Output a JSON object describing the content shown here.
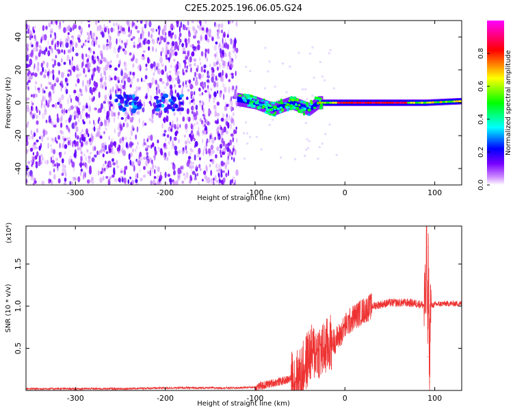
{
  "title": "C2E5.2025.196.06.05.G24",
  "chart_data": [
    {
      "type": "heatmap",
      "xlabel": "Height of straight line (km)",
      "ylabel": "Frequency (Hz)",
      "xlim": [
        -355,
        130
      ],
      "ylim": [
        -50,
        50
      ],
      "xticks": [
        -300,
        -200,
        -100,
        0,
        100
      ],
      "yticks": [
        -40,
        -20,
        0,
        20,
        40
      ],
      "colorbar": {
        "label": "Normalized spectral amplitude",
        "range": [
          0,
          1
        ],
        "ticks": [
          "0.0",
          "0.2",
          "0.4",
          "0.6",
          "0.8"
        ],
        "tick_values": [
          0,
          0.2,
          0.4,
          0.6,
          0.8
        ],
        "colors": [
          "#ffffff",
          "#cc88ff",
          "#7700ff",
          "#0000ff",
          "#00ffff",
          "#00ff00",
          "#ffff00",
          "#ff0000",
          "#ff00ff"
        ]
      },
      "noise_region_x": [
        -355,
        -120
      ],
      "signal_track": [
        {
          "x": -120,
          "f": 2
        },
        {
          "x": -100,
          "f": 0
        },
        {
          "x": -80,
          "f": -4
        },
        {
          "x": -60,
          "f": 0
        },
        {
          "x": -40,
          "f": -4
        },
        {
          "x": -30,
          "f": 0
        },
        {
          "x": 0,
          "f": 0
        },
        {
          "x": 50,
          "f": 0
        },
        {
          "x": 90,
          "f": 0
        },
        {
          "x": 130,
          "f": 1
        }
      ]
    },
    {
      "type": "line",
      "xlabel": "Height of straight line (km)",
      "ylabel": "SNR (10 * v/v)",
      "scale_note": "(x10⁴)",
      "xlim": [
        -355,
        130
      ],
      "ylim": [
        0,
        1.95
      ],
      "xticks": [
        -300,
        -200,
        -100,
        0,
        100
      ],
      "yticks": [
        "0.5",
        "1.0",
        "1.5"
      ],
      "ytick_values": [
        0.5,
        1.0,
        1.5
      ],
      "color": "#ee3333",
      "series": [
        {
          "x": [
            -355,
            -300,
            -250,
            -200,
            -150,
            -120,
            -100,
            -90,
            -80,
            -70,
            -60,
            -50,
            -45,
            -40,
            -35,
            -30,
            -25,
            -20,
            -15,
            -10,
            -5,
            0,
            10,
            20,
            30,
            40,
            50,
            60,
            70,
            80,
            85,
            90,
            91,
            92,
            93,
            94,
            95,
            100,
            110,
            120,
            130
          ],
          "y": [
            0.02,
            0.02,
            0.02,
            0.03,
            0.03,
            0.03,
            0.04,
            0.06,
            0.09,
            0.11,
            0.14,
            0.16,
            0.28,
            0.42,
            0.45,
            0.48,
            0.46,
            0.52,
            0.57,
            0.6,
            0.66,
            0.76,
            0.87,
            0.94,
            1.0,
            1.02,
            1.04,
            1.04,
            1.04,
            1.03,
            1.02,
            1.0,
            1.9,
            0.4,
            1.7,
            0.1,
            1.0,
            1.02,
            1.03,
            1.03,
            1.03
          ]
        }
      ]
    }
  ]
}
